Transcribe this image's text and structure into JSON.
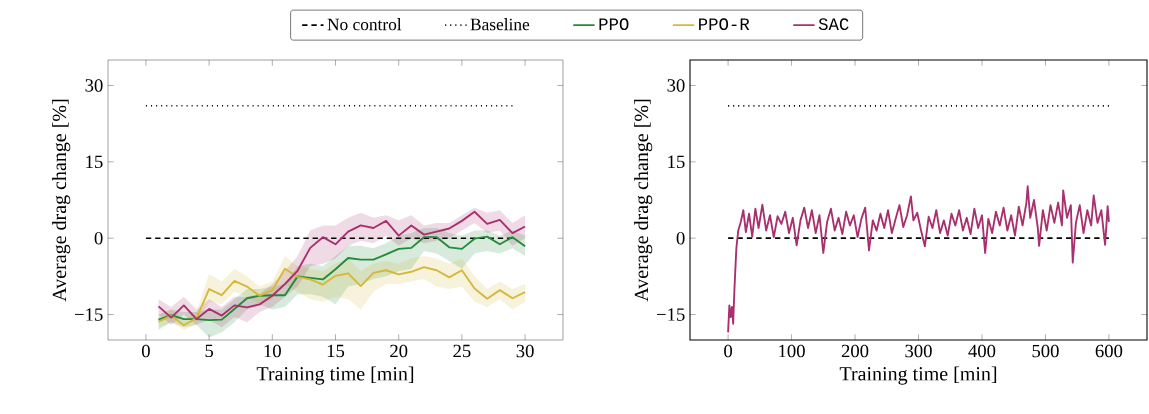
{
  "chart_data": [
    {
      "type": "line",
      "xlabel": "Training time [min]",
      "ylabel": "Average drag change [%]",
      "xlim": [
        -3,
        33
      ],
      "ylim": [
        -20,
        35
      ],
      "xticks": [
        0,
        5,
        10,
        15,
        20,
        25,
        30
      ],
      "yticks": [
        {
          "value": -15,
          "label": "−15"
        },
        0,
        15,
        30
      ],
      "legend": "top",
      "grid": false,
      "series": [
        {
          "name": "No control",
          "color": "#000000",
          "line_style": "dashed",
          "x": [
            0,
            29
          ],
          "values": [
            0,
            0
          ]
        },
        {
          "name": "Baseline",
          "color": "#000000",
          "line_style": "dotted",
          "x": [
            0,
            29
          ],
          "values": [
            26,
            26
          ]
        },
        {
          "name": "PPO",
          "color": "#228b37",
          "line_style": "solid",
          "x": [
            1,
            2,
            3,
            4,
            5,
            6,
            7,
            8,
            9,
            10,
            11,
            12,
            13,
            14,
            15,
            16,
            17,
            18,
            19,
            20,
            21,
            22,
            23,
            24,
            25,
            26,
            27,
            28,
            29,
            30
          ],
          "values": [
            -16.0,
            -15.1,
            -15.9,
            -15.9,
            -16.1,
            -16.0,
            -13.9,
            -11.8,
            -11.3,
            -11.2,
            -11.2,
            -7.5,
            -7.8,
            -8.1,
            -6.1,
            -3.9,
            -4.2,
            -4.2,
            -3.2,
            -2.1,
            -1.9,
            0.2,
            0.2,
            -1.8,
            -2.1,
            -0.1,
            0.3,
            -1.2,
            0.2,
            -1.6
          ],
          "lower": [
            -18.0,
            -16.5,
            -17.5,
            -17.0,
            -19.5,
            -18.5,
            -16.5,
            -14.0,
            -13.0,
            -14.0,
            -13.5,
            -11.0,
            -11.0,
            -11.5,
            -13.0,
            -9.5,
            -9.0,
            -8.0,
            -7.5,
            -6.5,
            -6.0,
            -2.5,
            -3.0,
            -4.5,
            -6.0,
            -3.0,
            -2.5,
            -3.0,
            -2.0,
            -3.5
          ],
          "upper": [
            -15.0,
            -14.0,
            -14.5,
            -14.5,
            -14.0,
            -14.0,
            -12.0,
            -10.0,
            -10.0,
            -9.5,
            -9.0,
            -5.5,
            -5.0,
            -5.5,
            -3.5,
            -1.5,
            -1.5,
            -2.0,
            -1.0,
            0.5,
            1.0,
            2.0,
            2.0,
            1.0,
            0.5,
            1.5,
            1.5,
            0.5,
            1.5,
            0.5
          ]
        },
        {
          "name": "PPO-R",
          "color": "#d4b83a",
          "line_style": "solid",
          "x": [
            1,
            2,
            3,
            4,
            5,
            6,
            7,
            8,
            9,
            10,
            11,
            12,
            13,
            14,
            15,
            16,
            17,
            18,
            19,
            20,
            21,
            22,
            23,
            24,
            25,
            26,
            27,
            28,
            29,
            30
          ],
          "values": [
            -16.4,
            -15.2,
            -17.1,
            -15.7,
            -10.0,
            -11.2,
            -8.4,
            -9.5,
            -11.3,
            -10.2,
            -6.0,
            -7.6,
            -8.1,
            -9.1,
            -7.4,
            -6.9,
            -9.4,
            -6.8,
            -6.3,
            -7.1,
            -6.6,
            -5.7,
            -6.3,
            -7.7,
            -6.3,
            -9.9,
            -11.9,
            -10.2,
            -11.8,
            -10.6
          ],
          "lower": [
            -17.5,
            -16.5,
            -18.0,
            -17.0,
            -12.5,
            -13.0,
            -10.5,
            -11.5,
            -13.0,
            -12.0,
            -9.0,
            -10.5,
            -12.0,
            -12.5,
            -11.5,
            -12.0,
            -14.0,
            -10.5,
            -9.0,
            -9.0,
            -8.5,
            -8.0,
            -9.5,
            -10.0,
            -9.5,
            -12.5,
            -13.5,
            -12.0,
            -14.0,
            -12.5
          ],
          "upper": [
            -15.0,
            -14.0,
            -16.0,
            -14.5,
            -7.0,
            -8.5,
            -6.0,
            -7.5,
            -9.5,
            -8.5,
            -3.5,
            -5.5,
            -6.0,
            -6.5,
            -5.0,
            -4.0,
            -6.5,
            -5.0,
            -4.5,
            -5.0,
            -4.0,
            -3.5,
            -4.0,
            -5.0,
            -4.0,
            -7.5,
            -10.0,
            -8.5,
            -10.0,
            -9.0
          ]
        },
        {
          "name": "SAC",
          "color": "#a8306e",
          "line_style": "solid",
          "x": [
            1,
            2,
            3,
            4,
            5,
            6,
            7,
            8,
            9,
            10,
            11,
            12,
            13,
            14,
            15,
            16,
            17,
            18,
            19,
            20,
            21,
            22,
            23,
            24,
            25,
            26,
            27,
            28,
            29,
            30
          ],
          "values": [
            -13.4,
            -15.6,
            -13.2,
            -15.9,
            -13.9,
            -15.2,
            -13.2,
            -13.6,
            -13.0,
            -11.3,
            -9.0,
            -6.4,
            -1.9,
            0.2,
            -1.2,
            1.3,
            2.5,
            2.0,
            3.4,
            0.5,
            2.5,
            0.7,
            1.3,
            1.9,
            3.4,
            5.2,
            2.8,
            3.6,
            1.0,
            2.3
          ],
          "lower": [
            -15.0,
            -17.0,
            -15.0,
            -17.0,
            -16.0,
            -17.5,
            -15.5,
            -16.5,
            -14.5,
            -13.5,
            -11.5,
            -9.5,
            -5.5,
            -5.0,
            -4.0,
            -1.5,
            -0.5,
            -1.0,
            0.5,
            -1.5,
            0.0,
            -1.0,
            -0.5,
            0.0,
            1.5,
            3.0,
            1.0,
            1.5,
            -1.5,
            0.0
          ],
          "upper": [
            -12.0,
            -13.5,
            -11.5,
            -14.0,
            -12.0,
            -13.5,
            -11.5,
            -11.5,
            -11.0,
            -9.0,
            -6.5,
            -3.5,
            1.5,
            2.5,
            2.5,
            4.0,
            5.0,
            4.0,
            4.5,
            3.5,
            4.5,
            2.5,
            3.0,
            3.0,
            4.5,
            6.0,
            5.0,
            5.5,
            3.0,
            4.5
          ]
        }
      ]
    },
    {
      "type": "line",
      "xlabel": "Training time [min]",
      "ylabel": "Average drag change [%]",
      "xlim": [
        -60,
        660
      ],
      "ylim": [
        -20,
        35
      ],
      "xticks": [
        0,
        100,
        200,
        300,
        400,
        500,
        600
      ],
      "yticks": [
        {
          "value": -15,
          "label": "−15"
        },
        0,
        15,
        30
      ],
      "grid": false,
      "series": [
        {
          "color": "#000000",
          "line_style": "dashed",
          "x": [
            0,
            600
          ],
          "values": [
            0,
            0
          ]
        },
        {
          "color": "#000000",
          "line_style": "dotted",
          "x": [
            0,
            600
          ],
          "values": [
            26,
            26
          ]
        },
        {
          "color": "#a8306e",
          "line_style": "solid",
          "x": [
            0,
            2,
            4,
            6,
            8,
            10,
            13,
            16,
            20,
            24,
            28,
            33,
            38,
            43,
            48,
            54,
            60,
            66,
            72,
            78,
            84,
            90,
            96,
            102,
            108,
            114,
            120,
            126,
            132,
            138,
            144,
            150,
            156,
            162,
            168,
            174,
            180,
            186,
            192,
            198,
            204,
            210,
            216,
            222,
            228,
            234,
            240,
            246,
            252,
            258,
            264,
            270,
            276,
            282,
            288,
            292,
            298,
            304,
            310,
            316,
            322,
            328,
            334,
            340,
            346,
            352,
            358,
            364,
            370,
            376,
            382,
            388,
            394,
            400,
            405,
            410,
            416,
            422,
            428,
            434,
            440,
            446,
            452,
            458,
            464,
            470,
            472,
            476,
            482,
            488,
            490,
            496,
            502,
            508,
            514,
            520,
            526,
            528,
            534,
            540,
            543,
            548,
            554,
            560,
            566,
            572,
            576,
            582,
            588,
            594,
            598,
            600
          ],
          "values": [
            -18.5,
            -13.2,
            -15.5,
            -13.5,
            -16.8,
            -10,
            -2,
            1.5,
            3.2,
            5.5,
            1.2,
            4.8,
            0.3,
            5.8,
            2.0,
            6.6,
            1.5,
            4.5,
            0.2,
            4.3,
            2.8,
            5.2,
            1.0,
            4.0,
            -1.4,
            3.5,
            6.0,
            2.0,
            5.5,
            1.0,
            4.5,
            -2.9,
            3.2,
            5.8,
            1.5,
            4.0,
            0.8,
            5.2,
            2.5,
            4.5,
            0.2,
            3.8,
            6.0,
            -2.4,
            3.5,
            1.5,
            4.8,
            2.0,
            5.5,
            1.0,
            3.8,
            6.5,
            2.2,
            4.5,
            8.2,
            3.5,
            5.0,
            1.5,
            -1.6,
            4.2,
            2.0,
            5.5,
            1.0,
            3.5,
            0.5,
            4.8,
            2.5,
            5.5,
            1.5,
            4.0,
            0.8,
            5.8,
            2.0,
            4.5,
            -2.9,
            3.8,
            1.0,
            5.2,
            2.5,
            6.0,
            1.5,
            4.5,
            0.5,
            6.2,
            2.5,
            7.0,
            10.2,
            4.0,
            7.5,
            2.0,
            -1.5,
            5.5,
            1.5,
            6.5,
            3.0,
            7.0,
            2.5,
            9.4,
            4.0,
            6.5,
            -4.8,
            3.0,
            6.5,
            1.0,
            5.5,
            2.5,
            8.4,
            3.0,
            5.5,
            -1.3,
            6.3,
            3.2
          ]
        }
      ]
    }
  ]
}
